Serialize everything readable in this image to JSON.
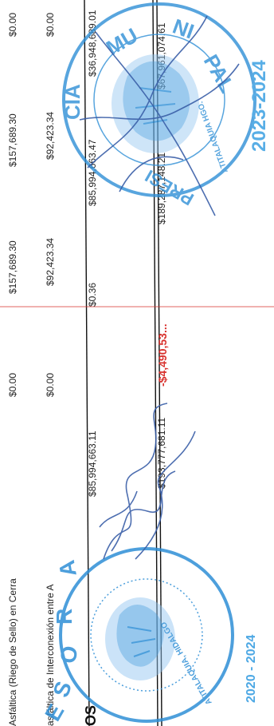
{
  "colors": {
    "text": "#222222",
    "negative": "#d8322e",
    "seal": "#2f8fd6",
    "pen": "#3a5fa8",
    "rule": "#111111",
    "red_rule": "#d8322e"
  },
  "rows": [
    {
      "description": "Asfáltica (Riego de Sello) en Cerra",
      "col1": "$0.00",
      "col2": "$157,689.30",
      "col3": "$157,689.30",
      "col4": "$0.00"
    },
    {
      "description": "asfáltica de Interconexión entre A",
      "col1": "$0.00",
      "col2": "$92,423.34",
      "col3": "$92,423.34",
      "col4": "$0.00"
    }
  ],
  "subtotal": {
    "label": "OS",
    "col1": "$85,994,663.11",
    "col2": "$0.36",
    "col3": "$85,994,663.47",
    "col4": "$36,948,689.01"
  },
  "total": {
    "col1": "$193,777,681.11",
    "col2": "-$4,490,53...",
    "col3": "$189,287,148.21",
    "col4": "$67,961,074.61"
  },
  "seal_left": {
    "ring_text": "TESORERIA",
    "bottom_text": "ATITALAQUIA, HIDALGO",
    "years": "2020 - 2024",
    "icon": "eagle-emblem-icon"
  },
  "seal_right": {
    "ring_text": "PRESIDENCIA MUNICIPAL",
    "bottom_text": "ATITALAQUIA HGO.",
    "years": "2023-2024",
    "icon": "eagle-emblem-icon"
  },
  "signatures": {
    "icon": "handwritten-signature-icon"
  }
}
